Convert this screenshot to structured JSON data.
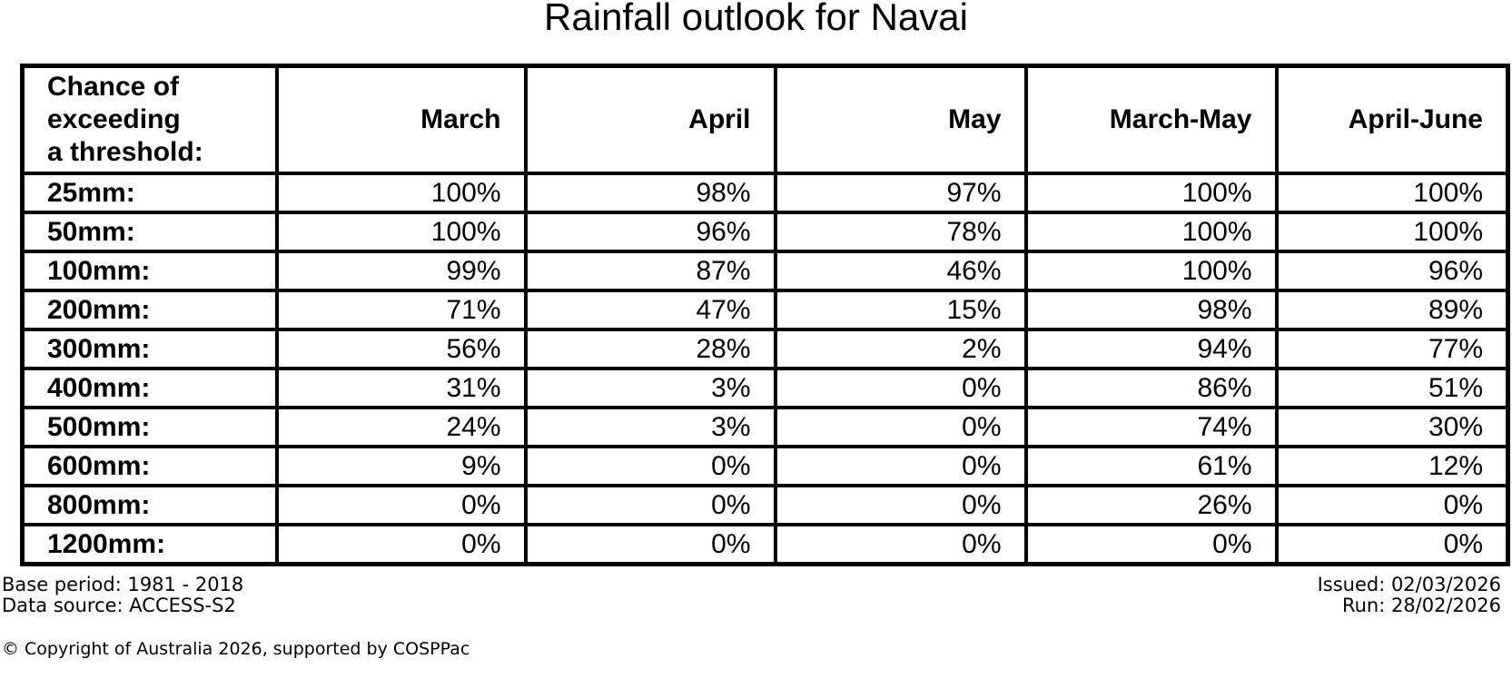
{
  "title": "Rainfall outlook for Navai",
  "chart_data": {
    "type": "table",
    "title": "Rainfall outlook for Navai",
    "corner_header_lines": [
      "Chance of",
      "exceeding",
      "a threshold:"
    ],
    "columns": [
      "March",
      "April",
      "May",
      "March-May",
      "April-June"
    ],
    "rows": [
      {
        "threshold": "25mm:",
        "values": [
          "100%",
          "98%",
          "97%",
          "100%",
          "100%"
        ]
      },
      {
        "threshold": "50mm:",
        "values": [
          "100%",
          "96%",
          "78%",
          "100%",
          "100%"
        ]
      },
      {
        "threshold": "100mm:",
        "values": [
          "99%",
          "87%",
          "46%",
          "100%",
          "96%"
        ]
      },
      {
        "threshold": "200mm:",
        "values": [
          "71%",
          "47%",
          "15%",
          "98%",
          "89%"
        ]
      },
      {
        "threshold": "300mm:",
        "values": [
          "56%",
          "28%",
          "2%",
          "94%",
          "77%"
        ]
      },
      {
        "threshold": "400mm:",
        "values": [
          "31%",
          "3%",
          "0%",
          "86%",
          "51%"
        ]
      },
      {
        "threshold": "500mm:",
        "values": [
          "24%",
          "3%",
          "0%",
          "74%",
          "30%"
        ]
      },
      {
        "threshold": "600mm:",
        "values": [
          "9%",
          "0%",
          "0%",
          "61%",
          "12%"
        ]
      },
      {
        "threshold": "800mm:",
        "values": [
          "0%",
          "0%",
          "0%",
          "26%",
          "0%"
        ]
      },
      {
        "threshold": "1200mm:",
        "values": [
          "0%",
          "0%",
          "0%",
          "0%",
          "0%"
        ]
      }
    ],
    "units": "percent chance of exceeding rainfall threshold",
    "grid": true
  },
  "footer": {
    "base_period": "Base period: 1981 - 2018",
    "data_source": "Data source: ACCESS-S2",
    "issued": "Issued: 02/03/2026",
    "run": "Run: 28/02/2026",
    "copyright": "© Copyright of Australia 2026, supported by COSPPac"
  },
  "colors": {
    "text": "#000000",
    "background": "#ffffff",
    "table_border": "#000000"
  }
}
